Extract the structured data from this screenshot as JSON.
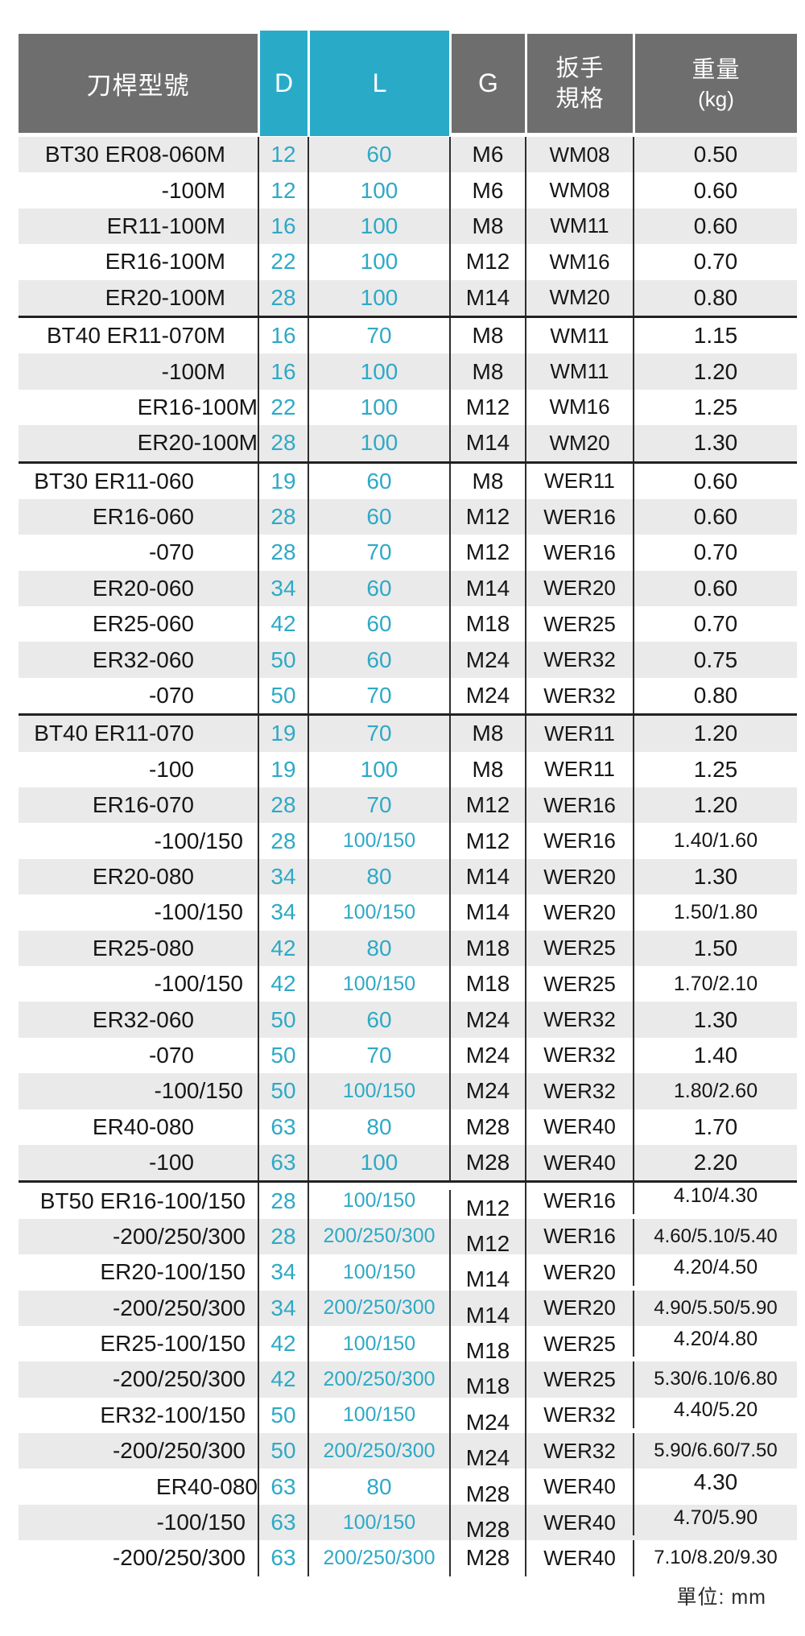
{
  "table": {
    "headers": {
      "model": "刀桿型號",
      "d": "D",
      "l": "L",
      "g": "G",
      "wrench_line1": "扳手",
      "wrench_line2": "規格",
      "weight_line1": "重量",
      "weight_line2": "(kg)"
    },
    "rows": [
      {
        "model": "BT30 ER08-060M",
        "d": "12",
        "l": "60",
        "g": "M6",
        "wrench": "WM08",
        "weight": "0.50",
        "indent": "r40"
      },
      {
        "model": "-100M",
        "d": "12",
        "l": "100",
        "g": "M6",
        "wrench": "WM08",
        "weight": "0.60",
        "indent": "r40"
      },
      {
        "model": "ER11-100M",
        "d": "16",
        "l": "100",
        "g": "M8",
        "wrench": "WM11",
        "weight": "0.60",
        "indent": "r40"
      },
      {
        "model": "ER16-100M",
        "d": "22",
        "l": "100",
        "g": "M12",
        "wrench": "WM16",
        "weight": "0.70",
        "indent": "r40"
      },
      {
        "model": "ER20-100M",
        "d": "28",
        "l": "100",
        "g": "M14",
        "wrench": "WM20",
        "weight": "0.80",
        "indent": "r40"
      },
      {
        "model": "BT40 ER11-070M",
        "d": "16",
        "l": "70",
        "g": "M8",
        "wrench": "WM11",
        "weight": "1.15",
        "indent": "r40"
      },
      {
        "model": "-100M",
        "d": "16",
        "l": "100",
        "g": "M8",
        "wrench": "WM11",
        "weight": "1.20",
        "indent": "r40"
      },
      {
        "model": "ER16-100M",
        "d": "22",
        "l": "100",
        "g": "M12",
        "wrench": "WM16",
        "weight": "1.25",
        "indent": "l13"
      },
      {
        "model": "ER20-100M",
        "d": "28",
        "l": "100",
        "g": "M14",
        "wrench": "WM20",
        "weight": "1.30",
        "indent": "l13"
      },
      {
        "model": "BT30 ER11-060",
        "d": "19",
        "l": "60",
        "g": "M8",
        "wrench": "WER11",
        "weight": "0.60",
        "indent": "r79"
      },
      {
        "model": "ER16-060",
        "d": "28",
        "l": "60",
        "g": "M12",
        "wrench": "WER16",
        "weight": "0.60",
        "indent": "r79"
      },
      {
        "model": "-070",
        "d": "28",
        "l": "70",
        "g": "M12",
        "wrench": "WER16",
        "weight": "0.70",
        "indent": "r79"
      },
      {
        "model": "ER20-060",
        "d": "34",
        "l": "60",
        "g": "M14",
        "wrench": "WER20",
        "weight": "0.60",
        "indent": "r79"
      },
      {
        "model": "ER25-060",
        "d": "42",
        "l": "60",
        "g": "M18",
        "wrench": "WER25",
        "weight": "0.70",
        "indent": "r79"
      },
      {
        "model": "ER32-060",
        "d": "50",
        "l": "60",
        "g": "M24",
        "wrench": "WER32",
        "weight": "0.75",
        "indent": "r79"
      },
      {
        "model": "-070",
        "d": "50",
        "l": "70",
        "g": "M24",
        "wrench": "WER32",
        "weight": "0.80",
        "indent": "r79"
      },
      {
        "model": "BT40 ER11-070",
        "d": "19",
        "l": "70",
        "g": "M8",
        "wrench": "WER11",
        "weight": "1.20",
        "indent": "r79"
      },
      {
        "model": "-100",
        "d": "19",
        "l": "100",
        "g": "M8",
        "wrench": "WER11",
        "weight": "1.25",
        "indent": "r79"
      },
      {
        "model": "ER16-070",
        "d": "28",
        "l": "70",
        "g": "M12",
        "wrench": "WER16",
        "weight": "1.20",
        "indent": "r79"
      },
      {
        "model": "-100/150",
        "d": "28",
        "l": "100/150",
        "g": "M12",
        "wrench": "WER16",
        "weight": "1.40/1.60",
        "indent": "r18"
      },
      {
        "model": "ER20-080",
        "d": "34",
        "l": "80",
        "g": "M14",
        "wrench": "WER20",
        "weight": "1.30",
        "indent": "r79"
      },
      {
        "model": "-100/150",
        "d": "34",
        "l": "100/150",
        "g": "M14",
        "wrench": "WER20",
        "weight": "1.50/1.80",
        "indent": "r18"
      },
      {
        "model": "ER25-080",
        "d": "42",
        "l": "80",
        "g": "M18",
        "wrench": "WER25",
        "weight": "1.50",
        "indent": "r79"
      },
      {
        "model": "-100/150",
        "d": "42",
        "l": "100/150",
        "g": "M18",
        "wrench": "WER25",
        "weight": "1.70/2.10",
        "indent": "r18"
      },
      {
        "model": "ER32-060",
        "d": "50",
        "l": "60",
        "g": "M24",
        "wrench": "WER32",
        "weight": "1.30",
        "indent": "r79"
      },
      {
        "model": "-070",
        "d": "50",
        "l": "70",
        "g": "M24",
        "wrench": "WER32",
        "weight": "1.40",
        "indent": "r79"
      },
      {
        "model": "-100/150",
        "d": "50",
        "l": "100/150",
        "g": "M24",
        "wrench": "WER32",
        "weight": "1.80/2.60",
        "indent": "r18"
      },
      {
        "model": "ER40-080",
        "d": "63",
        "l": "80",
        "g": "M28",
        "wrench": "WER40",
        "weight": "1.70",
        "indent": "r79"
      },
      {
        "model": "-100",
        "d": "63",
        "l": "100",
        "g": "M28",
        "wrench": "WER40",
        "weight": "2.20",
        "indent": "r79"
      },
      {
        "model": "BT50 ER16-100/150",
        "d": "28",
        "l": "100/150",
        "g": "M12",
        "wrench": "WER16",
        "weight": "4.10/4.30",
        "indent": "r15"
      },
      {
        "model": "-200/250/300",
        "d": "28",
        "l": "200/250/300",
        "g": "M12",
        "wrench": "WER16",
        "weight": "4.60/5.10/5.40",
        "indent": "r15"
      },
      {
        "model": "ER20-100/150",
        "d": "34",
        "l": "100/150",
        "g": "M14",
        "wrench": "WER20",
        "weight": "4.20/4.50",
        "indent": "r15"
      },
      {
        "model": "-200/250/300",
        "d": "34",
        "l": "200/250/300",
        "g": "M14",
        "wrench": "WER20",
        "weight": "4.90/5.50/5.90",
        "indent": "r15"
      },
      {
        "model": "ER25-100/150",
        "d": "42",
        "l": "100/150",
        "g": "M18",
        "wrench": "WER25",
        "weight": "4.20/4.80",
        "indent": "r15"
      },
      {
        "model": "-200/250/300",
        "d": "42",
        "l": "200/250/300",
        "g": "M18",
        "wrench": "WER25",
        "weight": "5.30/6.10/6.80",
        "indent": "r15"
      },
      {
        "model": "ER32-100/150",
        "d": "50",
        "l": "100/150",
        "g": "M24",
        "wrench": "WER32",
        "weight": "4.40/5.20",
        "indent": "r15"
      },
      {
        "model": "-200/250/300",
        "d": "50",
        "l": "200/250/300",
        "g": "M24",
        "wrench": "WER32",
        "weight": "5.90/6.60/7.50",
        "indent": "r15"
      },
      {
        "model": "ER40-080",
        "d": "63",
        "l": "80",
        "g": "M28",
        "wrench": "WER40",
        "weight": "4.30",
        "indent": "l90"
      },
      {
        "model": "-100/150",
        "d": "63",
        "l": "100/150",
        "g": "M28",
        "wrench": "WER40",
        "weight": "4.70/5.90",
        "indent": "r15"
      },
      {
        "model": "-200/250/300",
        "d": "63",
        "l": "200/250/300",
        "g": "M28",
        "wrench": "WER40",
        "weight": "7.10/8.20/9.30",
        "indent": "r15"
      }
    ],
    "separators_after": [
      5,
      9,
      16,
      29
    ],
    "bt50_start_row": 30
  },
  "footer": {
    "unit_label": "單位: mm"
  },
  "colors": {
    "header_gray": "#6e6e6e",
    "header_cyan": "#29abc8",
    "value_cyan": "#2ea9c6",
    "stripe": "#eaeaea",
    "line": "#2e2e2e",
    "separator": "#222222",
    "ink": "#161616"
  }
}
